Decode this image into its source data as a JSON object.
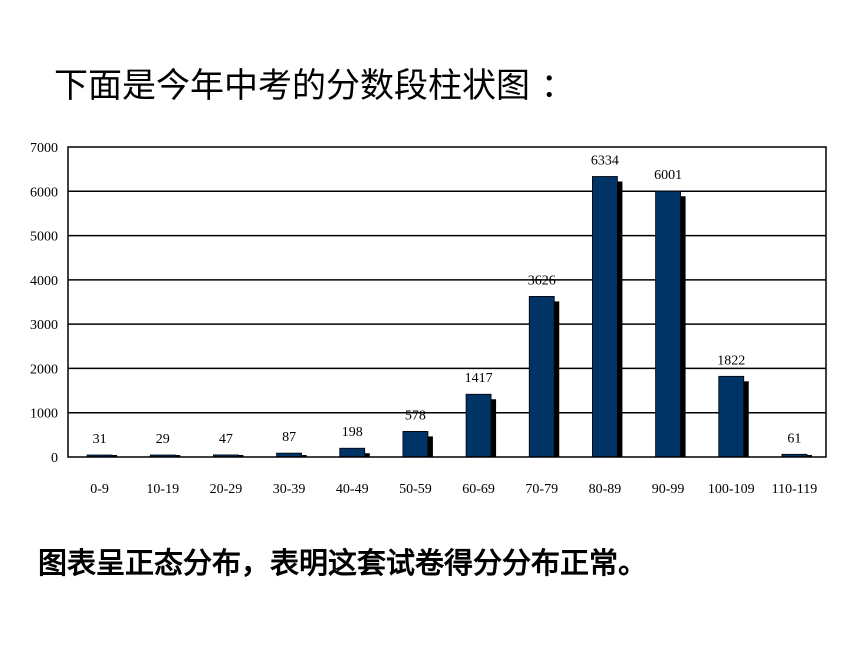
{
  "title": "下面是今年中考的分数段柱状图 ：",
  "conclusion": "图表呈正态分布，表明这套试卷得分分布正常。",
  "colors": {
    "bar": "#003366",
    "shadow": "#000000",
    "grid": "#000000"
  },
  "chart_data": {
    "type": "bar",
    "categories": [
      "0-9",
      "10-19",
      "20-29",
      "30-39",
      "40-49",
      "50-59",
      "60-69",
      "70-79",
      "80-89",
      "90-99",
      "100-109",
      "110-119"
    ],
    "values": [
      31,
      29,
      47,
      87,
      198,
      578,
      1417,
      3626,
      6334,
      6001,
      1822,
      61
    ],
    "ylim": [
      0,
      7000
    ],
    "yticks": [
      0,
      1000,
      2000,
      3000,
      4000,
      5000,
      6000,
      7000
    ],
    "grid": true,
    "title": "",
    "xlabel": "",
    "ylabel": ""
  }
}
